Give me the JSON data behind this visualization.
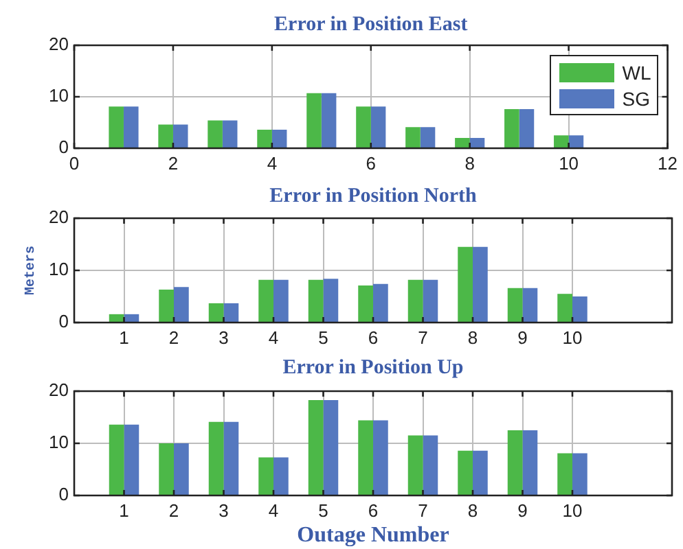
{
  "chart_data": [
    {
      "type": "bar",
      "title": "Error in Position East",
      "x": [
        1,
        2,
        3,
        4,
        5,
        6,
        7,
        8,
        9,
        10
      ],
      "series": [
        {
          "name": "WL",
          "color": "#4cb848",
          "values": [
            8.1,
            4.6,
            5.4,
            3.6,
            10.7,
            8.1,
            4.1,
            2.0,
            7.6,
            2.5
          ]
        },
        {
          "name": "SG",
          "color": "#5578bf",
          "values": [
            8.1,
            4.6,
            5.4,
            3.6,
            10.7,
            8.1,
            4.1,
            2.0,
            7.6,
            2.5
          ]
        }
      ],
      "xlim": [
        0,
        12
      ],
      "xticks": [
        0,
        2,
        4,
        6,
        8,
        10,
        12
      ],
      "ylim": [
        0,
        20
      ],
      "yticks": [
        0,
        10,
        20
      ],
      "grid": true,
      "legend": "top right"
    },
    {
      "type": "bar",
      "title": "Error in Position North",
      "ylabel": "Meters",
      "x": [
        1,
        2,
        3,
        4,
        5,
        6,
        7,
        8,
        9,
        10
      ],
      "series": [
        {
          "color": "#4cb848",
          "values": [
            1.6,
            6.3,
            3.7,
            8.2,
            8.2,
            7.1,
            8.2,
            14.5,
            6.6,
            5.5
          ]
        },
        {
          "color": "#5578bf",
          "values": [
            1.6,
            6.8,
            3.7,
            8.2,
            8.4,
            7.4,
            8.2,
            14.5,
            6.6,
            5.0
          ]
        }
      ],
      "xlim": [
        0,
        12
      ],
      "xticks": [
        1,
        2,
        3,
        4,
        5,
        6,
        7,
        8,
        9,
        10
      ],
      "ylim": [
        0,
        20
      ],
      "yticks": [
        0,
        10,
        20
      ],
      "grid": true
    },
    {
      "type": "bar",
      "title": "Error in Position Up",
      "xlabel": "Outage Number",
      "x": [
        1,
        2,
        3,
        4,
        5,
        6,
        7,
        8,
        9,
        10
      ],
      "series": [
        {
          "color": "#4cb848",
          "values": [
            13.6,
            10.0,
            14.1,
            7.3,
            18.3,
            14.4,
            11.5,
            8.6,
            12.5,
            8.1
          ]
        },
        {
          "color": "#5578bf",
          "values": [
            13.6,
            10.0,
            14.1,
            7.3,
            18.3,
            14.4,
            11.5,
            8.6,
            12.5,
            8.1
          ]
        }
      ],
      "xlim": [
        0,
        12
      ],
      "xticks": [
        1,
        2,
        3,
        4,
        5,
        6,
        7,
        8,
        9,
        10
      ],
      "ylim": [
        0,
        20
      ],
      "yticks": [
        0,
        10,
        20
      ],
      "grid": true
    }
  ]
}
